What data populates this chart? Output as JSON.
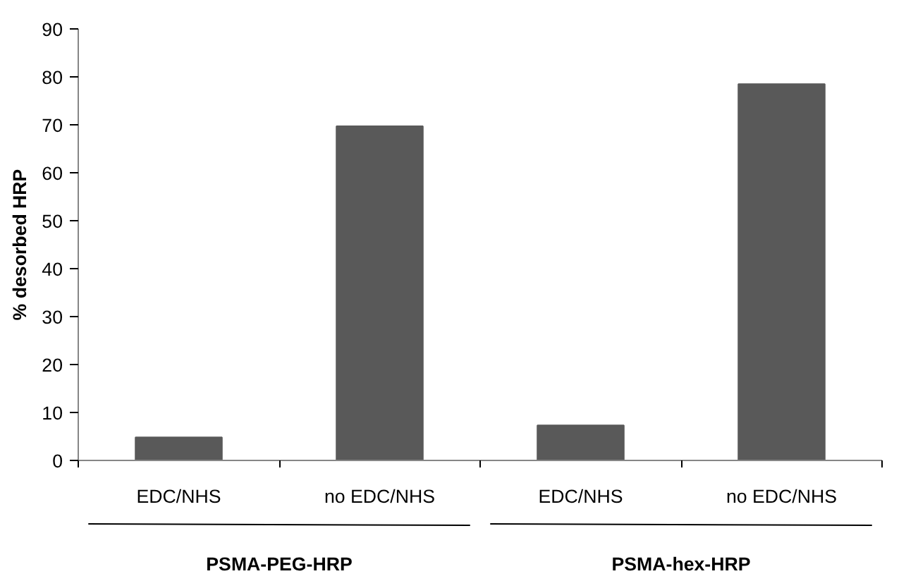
{
  "chart_data": {
    "type": "bar",
    "ylabel": "% desorbed HRP",
    "categories": [
      "EDC/NHS",
      "no EDC/NHS",
      "EDC/NHS",
      "no EDC/NHS"
    ],
    "values": [
      4.8,
      69.7,
      7.3,
      78.5
    ],
    "color": "#595959",
    "ylim": [
      0,
      90
    ],
    "yticks": [
      0,
      10,
      20,
      30,
      40,
      50,
      60,
      70,
      80,
      90
    ],
    "grid": false,
    "annotations": [
      "PSMA-PEG-HRP",
      "PSMA-hex-HRP"
    ]
  }
}
